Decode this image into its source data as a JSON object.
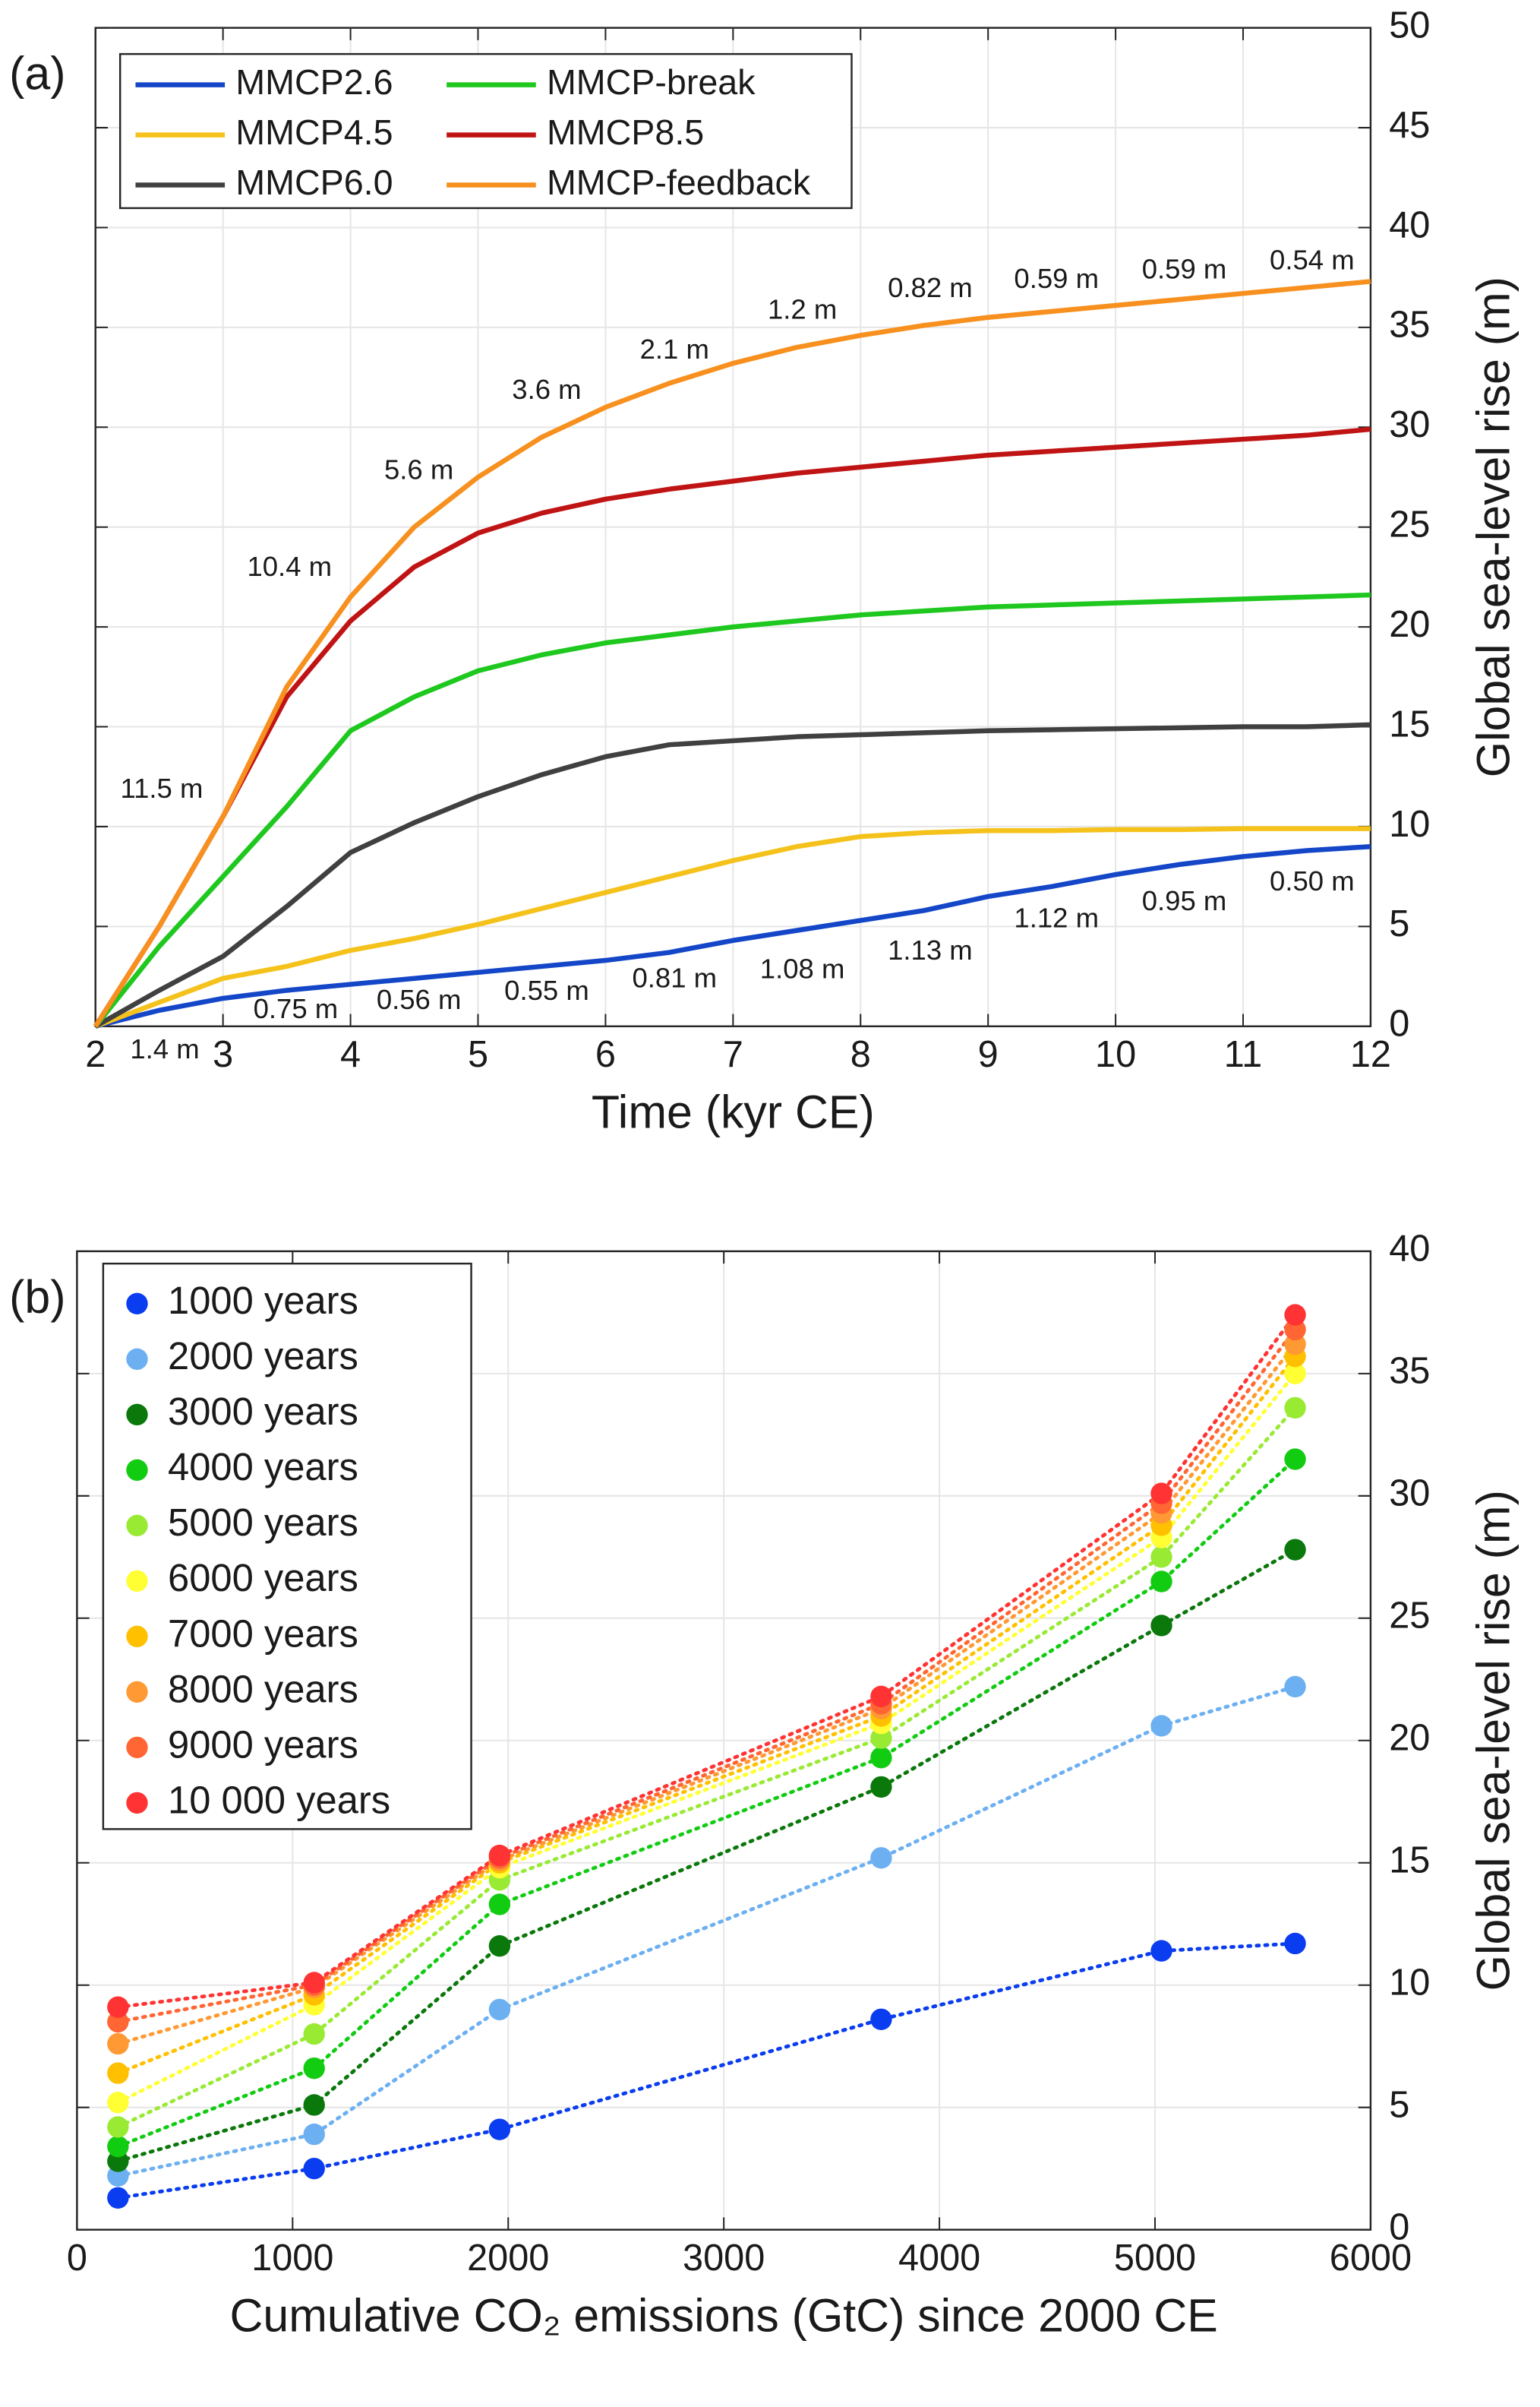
{
  "chart_data": [
    {
      "type": "line",
      "panel_label": "(a)",
      "x_label": "Time (kyr CE)",
      "y_label": "Global sea-level rise (m)",
      "x": [
        2,
        2.5,
        3,
        3.5,
        4,
        4.5,
        5,
        5.5,
        6,
        6.5,
        7,
        7.5,
        8,
        8.5,
        9,
        9.5,
        10,
        10.5,
        11,
        11.5,
        12
      ],
      "series": [
        {
          "name": "MMCP2.6",
          "color": "#1446c8",
          "values": [
            0,
            0.8,
            1.4,
            1.8,
            2.1,
            2.4,
            2.7,
            3.0,
            3.3,
            3.7,
            4.3,
            4.8,
            5.3,
            5.8,
            6.5,
            7.0,
            7.6,
            8.1,
            8.5,
            8.8,
            9.0
          ]
        },
        {
          "name": "MMCP4.5",
          "color": "#f5c21b",
          "values": [
            0,
            1.2,
            2.4,
            3.0,
            3.8,
            4.4,
            5.1,
            5.9,
            6.7,
            7.5,
            8.3,
            9.0,
            9.5,
            9.7,
            9.8,
            9.8,
            9.85,
            9.85,
            9.9,
            9.9,
            9.9
          ]
        },
        {
          "name": "MMCP6.0",
          "color": "#404040",
          "values": [
            0,
            1.8,
            3.5,
            6.0,
            8.7,
            10.2,
            11.5,
            12.6,
            13.5,
            14.1,
            14.3,
            14.5,
            14.6,
            14.7,
            14.8,
            14.85,
            14.9,
            14.95,
            15.0,
            15.0,
            15.1
          ]
        },
        {
          "name": "MMCP-break",
          "color": "#1ec81e",
          "values": [
            0,
            4.0,
            7.5,
            11.0,
            14.8,
            16.5,
            17.8,
            18.6,
            19.2,
            19.6,
            20.0,
            20.3,
            20.6,
            20.8,
            21.0,
            21.1,
            21.2,
            21.3,
            21.4,
            21.5,
            21.6
          ]
        },
        {
          "name": "MMCP8.5",
          "color": "#c01414",
          "values": [
            0,
            5.0,
            10.5,
            16.5,
            20.3,
            23.0,
            24.7,
            25.7,
            26.4,
            26.9,
            27.3,
            27.7,
            28.0,
            28.3,
            28.6,
            28.8,
            29.0,
            29.2,
            29.4,
            29.6,
            29.9
          ]
        },
        {
          "name": "MMCP-feedback",
          "color": "#f7901e",
          "values": [
            0,
            5.0,
            10.5,
            17.0,
            21.5,
            25.0,
            27.5,
            29.5,
            31.0,
            32.2,
            33.2,
            34.0,
            34.6,
            35.1,
            35.5,
            35.8,
            36.1,
            36.4,
            36.7,
            37.0,
            37.3
          ]
        }
      ],
      "annotations": [
        "11.5 m",
        "10.4 m",
        "5.6 m",
        "3.6 m",
        "2.1 m",
        "1.2 m",
        "0.82 m",
        "0.59 m",
        "0.59 m",
        "0.54 m",
        "1.4 m",
        "0.75 m",
        "0.56 m",
        "0.55 m",
        "0.81 m",
        "1.08 m",
        "1.13 m",
        "1.12 m",
        "0.95 m",
        "0.50 m"
      ],
      "xlim": [
        2,
        12
      ],
      "xticks": [
        2,
        3,
        4,
        5,
        6,
        7,
        8,
        9,
        10,
        11,
        12
      ],
      "ylim": [
        0,
        50
      ],
      "yticks": [
        0,
        5,
        10,
        15,
        20,
        25,
        30,
        35,
        40,
        45,
        50
      ],
      "grid": true,
      "legend": "upper-left"
    },
    {
      "type": "scatter",
      "panel_label": "(b)",
      "x_label": "Cumulative CO₂ emissions (GtC) since 2000 CE",
      "y_label": "Global sea-level rise (m)",
      "x": [
        190,
        1100,
        1960,
        3730,
        5030,
        5650
      ],
      "series": [
        {
          "name": "1000 years",
          "color": "#0a3cf0",
          "values": [
            1.3,
            2.5,
            4.1,
            8.6,
            11.4,
            11.7
          ]
        },
        {
          "name": "2000 years",
          "color": "#6cb0f2",
          "values": [
            2.2,
            3.9,
            9.0,
            15.2,
            20.6,
            22.2
          ]
        },
        {
          "name": "3000 years",
          "color": "#0a780a",
          "values": [
            2.8,
            5.1,
            11.6,
            18.1,
            24.7,
            27.8
          ]
        },
        {
          "name": "4000 years",
          "color": "#12cc12",
          "values": [
            3.4,
            6.6,
            13.3,
            19.3,
            26.5,
            31.5
          ]
        },
        {
          "name": "5000 years",
          "color": "#99ea33",
          "values": [
            4.2,
            8.0,
            14.3,
            20.1,
            27.5,
            33.6
          ]
        },
        {
          "name": "6000 years",
          "color": "#ffff33",
          "values": [
            5.2,
            9.2,
            14.8,
            20.7,
            28.3,
            35.0
          ]
        },
        {
          "name": "7000 years",
          "color": "#ffc000",
          "values": [
            6.4,
            9.6,
            15.0,
            21.0,
            28.8,
            35.7
          ]
        },
        {
          "name": "8000 years",
          "color": "#ff9933",
          "values": [
            7.6,
            9.9,
            15.1,
            21.3,
            29.3,
            36.2
          ]
        },
        {
          "name": "9000 years",
          "color": "#ff6633",
          "values": [
            8.5,
            10.0,
            15.2,
            21.5,
            29.7,
            36.8
          ]
        },
        {
          "name": "10 000 years",
          "color": "#ff3333",
          "values": [
            9.1,
            10.1,
            15.3,
            21.8,
            30.1,
            37.4
          ]
        }
      ],
      "xlim": [
        0,
        6000
      ],
      "xticks": [
        0,
        1000,
        2000,
        3000,
        4000,
        5000,
        6000
      ],
      "ylim": [
        0,
        40
      ],
      "yticks": [
        0,
        5,
        10,
        15,
        20,
        25,
        30,
        35,
        40
      ],
      "grid": true,
      "legend": "upper-left"
    }
  ]
}
